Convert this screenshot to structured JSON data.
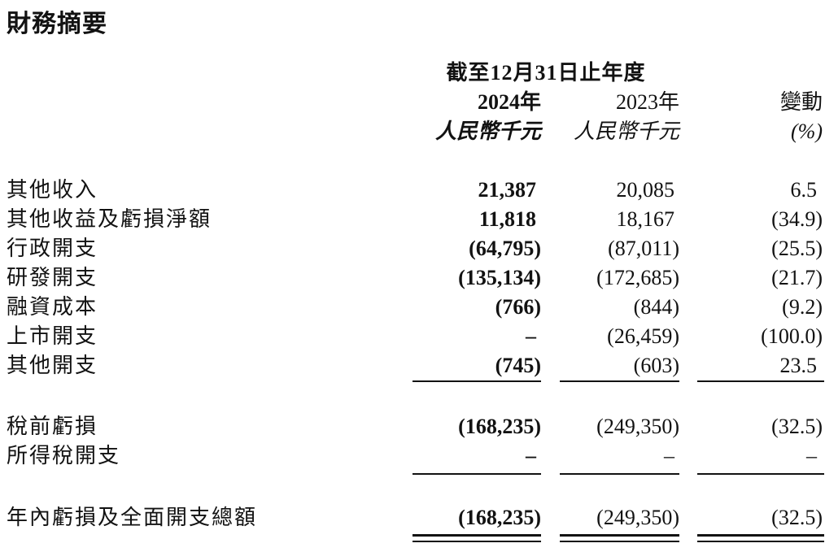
{
  "page": {
    "title": "財務摘要"
  },
  "colors": {
    "background": "#ffffff",
    "text": "#121212",
    "rule": "#121212"
  },
  "table": {
    "period_header": "截至12月31日止年度",
    "columns": [
      {
        "year": "2024年",
        "unit": "人民幣千元"
      },
      {
        "year": "2023年",
        "unit": "人民幣千元"
      },
      {
        "year": "變動",
        "unit": "(%)"
      }
    ],
    "sections": [
      {
        "rule": "single",
        "rows": [
          {
            "label": "其他收入",
            "y2024": "21,387",
            "y2023": "20,085",
            "change": "6.5"
          },
          {
            "label": "其他收益及虧損淨額",
            "y2024": "11,818",
            "y2023": "18,167",
            "change": "(34.9)"
          },
          {
            "label": "行政開支",
            "y2024": "(64,795)",
            "y2023": "(87,011)",
            "change": "(25.5)"
          },
          {
            "label": "研發開支",
            "y2024": "(135,134)",
            "y2023": "(172,685)",
            "change": "(21.7)"
          },
          {
            "label": "融資成本",
            "y2024": "(766)",
            "y2023": "(844)",
            "change": "(9.2)"
          },
          {
            "label": "上市開支",
            "y2024": "–",
            "y2023": "(26,459)",
            "change": "(100.0)"
          },
          {
            "label": "其他開支",
            "y2024": "(745)",
            "y2023": "(603)",
            "change": "23.5"
          }
        ]
      },
      {
        "rule": "single",
        "rows": [
          {
            "label": "稅前虧損",
            "y2024": "(168,235)",
            "y2023": "(249,350)",
            "change": "(32.5)"
          },
          {
            "label": "所得稅開支",
            "y2024": "–",
            "y2023": "–",
            "change": "–"
          }
        ]
      },
      {
        "rule": "double",
        "rows": [
          {
            "label": "年內虧損及全面開支總額",
            "y2024": "(168,235)",
            "y2023": "(249,350)",
            "change": "(32.5)"
          }
        ]
      }
    ]
  }
}
